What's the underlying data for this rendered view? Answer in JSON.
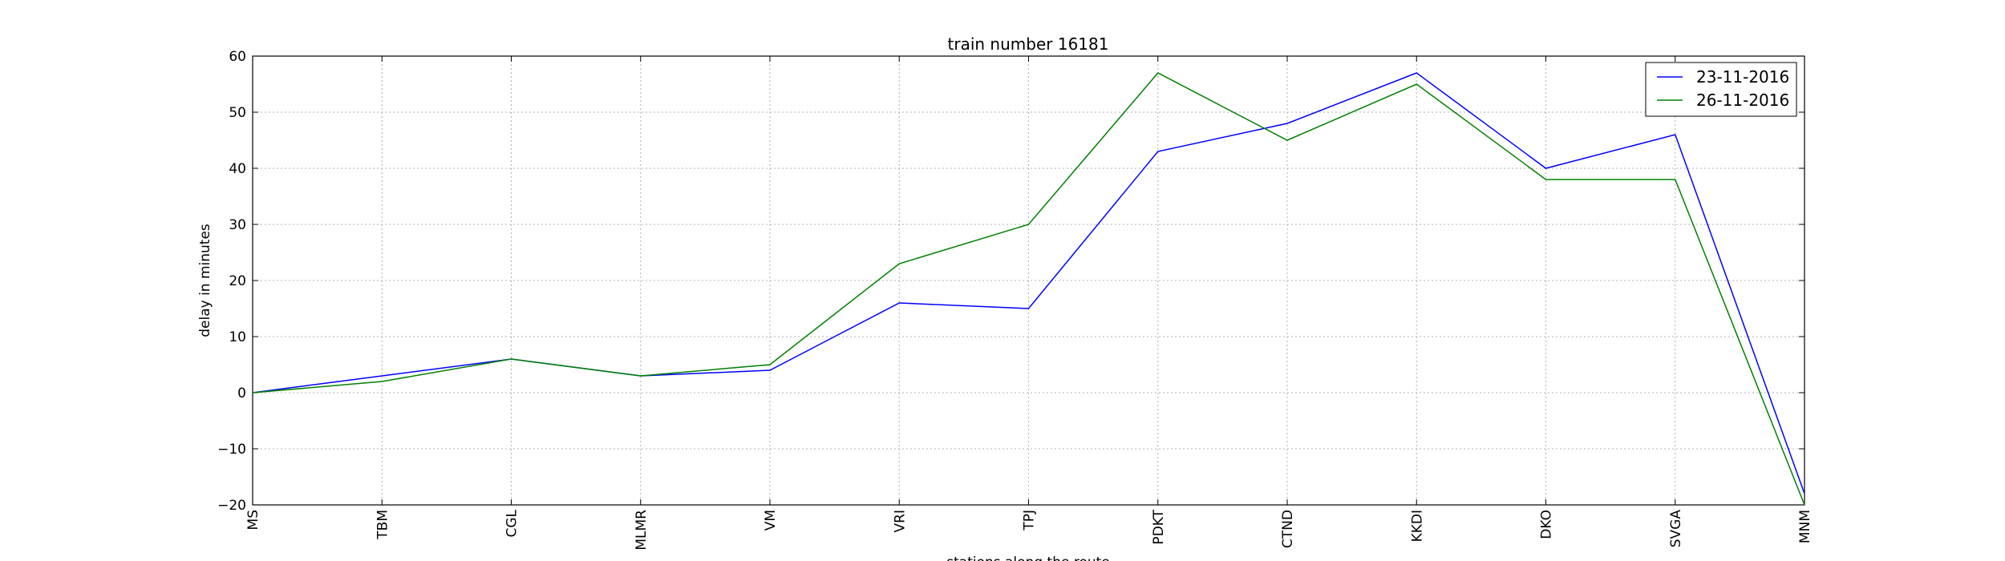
{
  "chart_data": {
    "type": "line",
    "title": "train number 16181",
    "xlabel": "stations along the route",
    "ylabel": "delay in minutes",
    "categories": [
      "MS",
      "TBM",
      "CGL",
      "MLMR",
      "VM",
      "VRI",
      "TPJ",
      "PDKT",
      "CTND",
      "KKDI",
      "DKO",
      "SVGA",
      "MNM"
    ],
    "ylim": [
      -20,
      60
    ],
    "yticks": [
      -20,
      -10,
      0,
      10,
      20,
      30,
      40,
      50,
      60
    ],
    "ytick_labels": [
      "−20",
      "−10",
      "0",
      "10",
      "20",
      "30",
      "40",
      "50",
      "60"
    ],
    "grid": true,
    "legend_position": "top-right",
    "series": [
      {
        "name": "23-11-2016",
        "color": "#0000ff",
        "values": [
          0,
          3,
          6,
          3,
          4,
          16,
          15,
          43,
          48,
          57,
          40,
          46,
          -18
        ]
      },
      {
        "name": "26-11-2016",
        "color": "#008000",
        "values": [
          0,
          2,
          6,
          3,
          5,
          23,
          30,
          57,
          45,
          55,
          38,
          38,
          -20
        ]
      }
    ]
  }
}
